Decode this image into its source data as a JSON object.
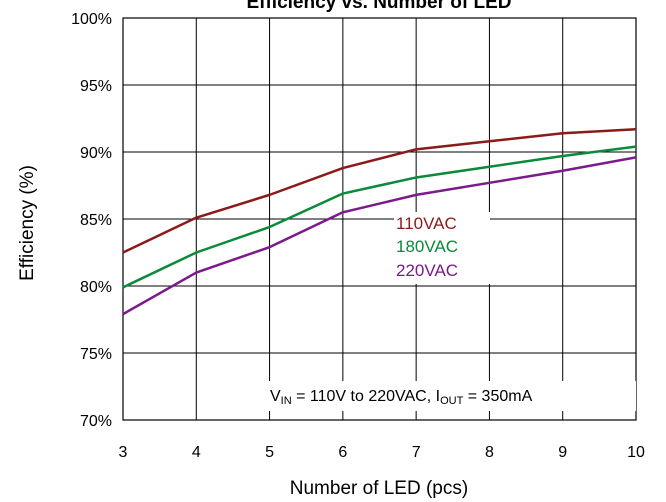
{
  "chart_data": {
    "type": "line",
    "title": "Efficiency vs. Number of LED",
    "xlabel": "Number of LED (pcs)",
    "ylabel": "Efficiency (%)",
    "x": [
      3,
      4,
      5,
      6,
      7,
      8,
      9,
      10
    ],
    "xlim": [
      3,
      10
    ],
    "ylim": [
      70,
      100
    ],
    "yticks": [
      70,
      75,
      80,
      85,
      90,
      95,
      100
    ],
    "ytick_labels": [
      "70%",
      "75%",
      "80%",
      "85%",
      "90%",
      "95%",
      "100%"
    ],
    "xtick_labels": [
      "3",
      "4",
      "5",
      "6",
      "7",
      "8",
      "9",
      "10"
    ],
    "grid": true,
    "series": [
      {
        "name": "110VAC",
        "color": "#8B1A1A",
        "values": [
          82.5,
          85.1,
          86.8,
          88.8,
          90.2,
          90.8,
          91.4,
          91.7
        ]
      },
      {
        "name": "180VAC",
        "color": "#0A8A3A",
        "values": [
          79.9,
          82.5,
          84.4,
          86.9,
          88.1,
          88.9,
          89.7,
          90.4
        ]
      },
      {
        "name": "220VAC",
        "color": "#7B1A8A",
        "values": [
          77.9,
          81.0,
          82.9,
          85.5,
          86.8,
          87.7,
          88.6,
          89.6
        ]
      }
    ],
    "annotation": {
      "v_sym": "V",
      "v_sub": "IN",
      "v_text": " = 110V to 220VAC, ",
      "i_sym": "I",
      "i_sub": "OUT",
      "i_text": " = 350mA"
    }
  }
}
